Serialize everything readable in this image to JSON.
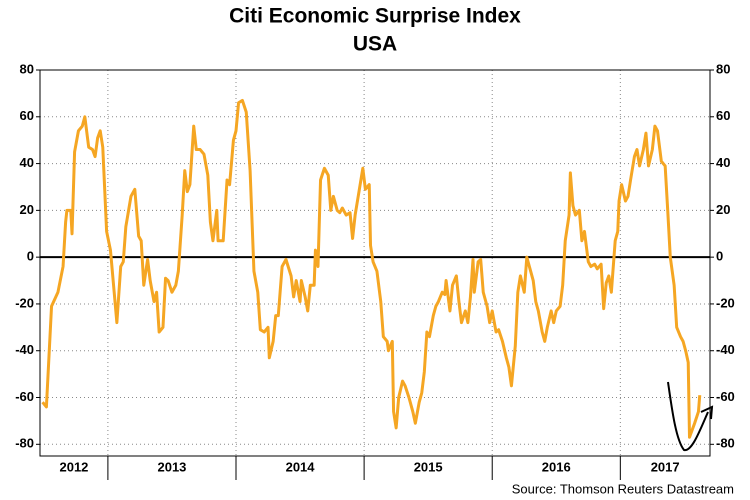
{
  "chart_data": {
    "type": "line",
    "title": "Citi Economic Surprise Index",
    "subtitle": "USA",
    "source": "Source: Thomson Reuters Datastream",
    "xlim": [
      2012.47,
      2017.7
    ],
    "xticks": [
      2013,
      2014,
      2015,
      2016,
      2017
    ],
    "year_labels": [
      2012,
      2013,
      2014,
      2015,
      2016,
      2017
    ],
    "ylim": [
      -85,
      80
    ],
    "yticks": [
      -80,
      -60,
      -40,
      -20,
      0,
      20,
      40,
      60,
      80
    ],
    "y2lim": [
      -85,
      80
    ],
    "y2ticks": [
      -80,
      -60,
      -40,
      -20,
      0,
      20,
      40,
      60,
      80
    ],
    "grid": true,
    "x": [
      2012.49,
      2012.52,
      2012.56,
      2012.61,
      2012.65,
      2012.67,
      2012.68,
      2012.71,
      2012.72,
      2012.74,
      2012.77,
      2012.8,
      2012.82,
      2012.85,
      2012.88,
      2012.9,
      2012.92,
      2012.94,
      2012.96,
      2012.99,
      2013.02,
      2013.07,
      2013.1,
      2013.12,
      2013.14,
      2013.18,
      2013.21,
      2013.24,
      2013.26,
      2013.28,
      2013.31,
      2013.33,
      2013.36,
      2013.38,
      2013.4,
      2013.43,
      2013.45,
      2013.47,
      2013.5,
      2013.53,
      2013.55,
      2013.58,
      2013.6,
      2013.62,
      2013.64,
      2013.67,
      2013.69,
      2013.72,
      2013.75,
      2013.78,
      2013.8,
      2013.82,
      2013.85,
      2013.86,
      2013.9,
      2013.93,
      2013.95,
      2013.98,
      2014.0,
      2014.02,
      2014.05,
      2014.08,
      2014.11,
      2014.14,
      2014.17,
      2014.19,
      2014.22,
      2014.25,
      2014.26,
      2014.29,
      2014.31,
      2014.33,
      2014.36,
      2014.39,
      2014.43,
      2014.45,
      2014.47,
      2014.5,
      2014.51,
      2014.54,
      2014.56,
      2014.58,
      2014.61,
      2014.62,
      2014.64,
      2014.66,
      2014.69,
      2014.72,
      2014.74,
      2014.76,
      2014.79,
      2014.81,
      2014.83,
      2014.86,
      2014.89,
      2014.91,
      2014.93,
      2014.96,
      2014.99,
      2015.01,
      2015.04,
      2015.05,
      2015.07,
      2015.1,
      2015.13,
      2015.15,
      2015.18,
      2015.19,
      2015.22,
      2015.23,
      2015.25,
      2015.27,
      2015.3,
      2015.32,
      2015.35,
      2015.38,
      2015.4,
      2015.43,
      2015.45,
      2015.47,
      2015.49,
      2015.51,
      2015.54,
      2015.56,
      2015.58,
      2015.61,
      2015.63,
      2015.64,
      2015.67,
      2015.69,
      2015.72,
      2015.74,
      2015.76,
      2015.79,
      2015.81,
      2015.83,
      2015.85,
      2015.86,
      2015.89,
      2015.91,
      2015.93,
      2015.96,
      2015.98,
      2016.0,
      2016.03,
      2016.05,
      2016.08,
      2016.11,
      2016.13,
      2016.15,
      2016.18,
      2016.2,
      2016.22,
      2016.25,
      2016.27,
      2016.29,
      2016.32,
      2016.34,
      2016.36,
      2016.39,
      2016.41,
      2016.43,
      2016.46,
      2016.48,
      2016.5,
      2016.53,
      2016.55,
      2016.57,
      2016.6,
      2016.61,
      2016.63,
      2016.65,
      2016.68,
      2016.7,
      2016.72,
      2016.75,
      2016.77,
      2016.8,
      2016.82,
      2016.85,
      2016.87,
      2016.89,
      2016.91,
      2016.93,
      2016.96,
      2016.98,
      2016.99,
      2017.01,
      2017.04,
      2017.06,
      2017.08,
      2017.11,
      2017.13,
      2017.15,
      2017.18,
      2017.2,
      2017.22,
      2017.25,
      2017.27,
      2017.29,
      2017.32,
      2017.35,
      2017.37,
      2017.39,
      2017.42,
      2017.44,
      2017.47,
      2017.49,
      2017.51,
      2017.53,
      2017.54,
      2017.56,
      2017.58,
      2017.61,
      2017.62
    ],
    "series": [
      {
        "color": "#f5a623",
        "values": [
          -62,
          -64,
          -21,
          -15,
          -4,
          15,
          20,
          20,
          10,
          45,
          54,
          56,
          60,
          47,
          46,
          43,
          51,
          54,
          47,
          11,
          3,
          -28,
          -4,
          -2,
          13,
          26,
          29,
          9,
          7,
          -12,
          -1,
          -10,
          -19,
          -15,
          -32,
          -30,
          -9,
          -10,
          -15,
          -12,
          -6,
          18,
          37,
          28,
          31,
          56,
          46,
          46,
          44,
          35,
          15,
          7,
          20,
          7,
          7,
          33,
          31,
          50,
          54,
          66,
          67,
          62,
          37,
          -6,
          -15,
          -31,
          -32,
          -30,
          -43,
          -36,
          -25,
          -25,
          -4,
          -1,
          -8,
          -17,
          -10,
          -19,
          -10,
          -17,
          -23,
          -12,
          -12,
          3,
          -4,
          33,
          38,
          35,
          20,
          26,
          20,
          19,
          21,
          18,
          19,
          8,
          18,
          28,
          38,
          29,
          31,
          5,
          -2,
          -6,
          -19,
          -34,
          -36,
          -40,
          -36,
          -66,
          -73,
          -60,
          -53,
          -55,
          -60,
          -66,
          -71,
          -62,
          -58,
          -49,
          -32,
          -34,
          -25,
          -21,
          -19,
          -15,
          -16,
          -10,
          -23,
          -12,
          -8,
          -19,
          -28,
          -23,
          -28,
          -17,
          -1,
          -15,
          -2,
          -1,
          -15,
          -21,
          -28,
          -23,
          -32,
          -31,
          -36,
          -43,
          -47,
          -55,
          -38,
          -15,
          -8,
          -15,
          0,
          -4,
          -10,
          -19,
          -23,
          -32,
          -36,
          -30,
          -23,
          -28,
          -23,
          -21,
          -12,
          7,
          18,
          36,
          22,
          18,
          20,
          7,
          11,
          -2,
          -4,
          -3,
          -5,
          -3,
          -22,
          -11,
          -8,
          -15,
          7,
          11,
          24,
          31,
          24,
          26,
          33,
          43,
          46,
          39,
          46,
          53,
          39,
          46,
          56,
          54,
          41,
          39,
          20,
          0,
          -12,
          -30,
          -34,
          -36,
          -40,
          -45,
          -77,
          -74,
          -71,
          -66,
          -59
        ]
      }
    ]
  }
}
